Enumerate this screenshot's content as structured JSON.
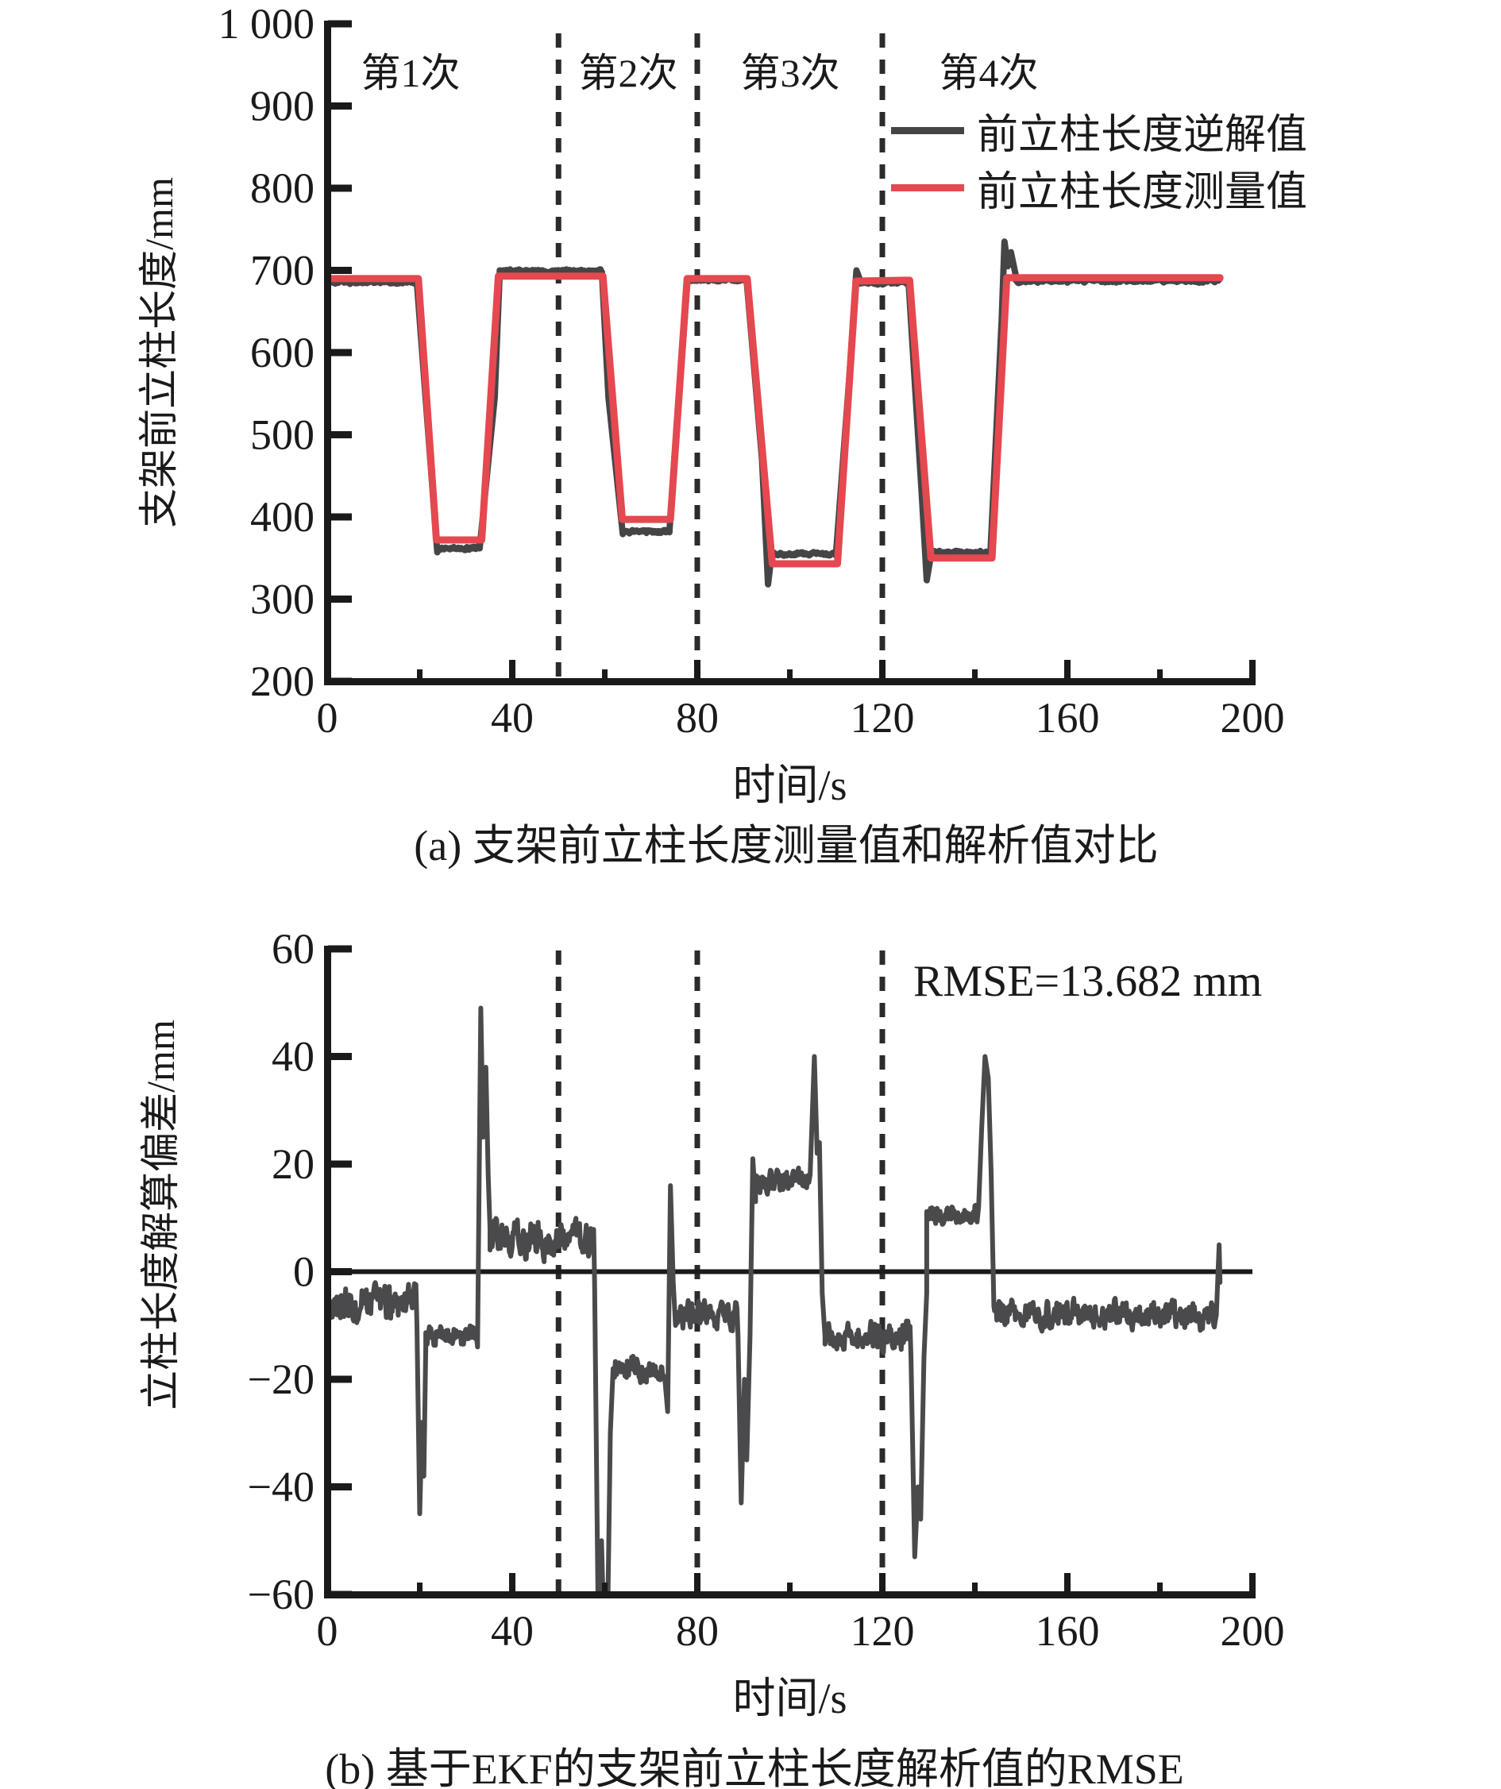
{
  "figure": {
    "background": "#ffffff",
    "text_color": "#1a1a1a",
    "axis_color": "#1a1a1a",
    "dash_color": "#2b2b2d"
  },
  "chart_data": [
    {
      "id": "a",
      "type": "line",
      "caption": "(a) 支架前立柱长度测量值和解析值对比",
      "xlabel": "时间/s",
      "ylabel": "支架前立柱长度/mm",
      "xlim": [
        0,
        200
      ],
      "ylim": [
        200,
        1000
      ],
      "xticks": [
        0,
        40,
        80,
        120,
        160,
        200
      ],
      "xtick_labels": [
        "0",
        "40",
        "80",
        "120",
        "160",
        "200"
      ],
      "x_minor_ticks": [
        20,
        60,
        100,
        140,
        180
      ],
      "yticks": [
        200,
        300,
        400,
        500,
        600,
        700,
        800,
        900,
        1000
      ],
      "ytick_labels": [
        "200",
        "300",
        "400",
        "500",
        "600",
        "700",
        "800",
        "900",
        "1 000"
      ],
      "grid": false,
      "dashed_vlines_x": [
        50,
        80,
        120
      ],
      "phase_labels": [
        {
          "text": "第1次",
          "x": 18
        },
        {
          "text": "第2次",
          "x": 65
        },
        {
          "text": "第3次",
          "x": 100
        },
        {
          "text": "第4次",
          "x": 143
        }
      ],
      "legend": {
        "position": "upper right",
        "items": [
          {
            "label": "前立柱长度逆解值",
            "color": "#454547"
          },
          {
            "label": "前立柱长度测量值",
            "color": "#e5484f"
          }
        ]
      },
      "series": [
        {
          "name": "前立柱长度逆解值",
          "color": "#454547",
          "style": "noisy",
          "segments": [
            {
              "type": "noise",
              "t0": 0.3,
              "t1": 19.4,
              "mean": 686,
              "amp": 4
            },
            {
              "type": "path",
              "pts": [
                [
                  19.4,
                  684
                ],
                [
                  23.8,
                  357
                ],
                [
                  24.3,
                  362
                ]
              ]
            },
            {
              "type": "noise",
              "t0": 24.3,
              "t1": 33.0,
              "mean": 362,
              "amp": 3
            },
            {
              "type": "path",
              "pts": [
                [
                  33.0,
                  364
                ],
                [
                  36.2,
                  545
                ],
                [
                  37.3,
                  700
                ]
              ]
            },
            {
              "type": "noise",
              "t0": 37.3,
              "t1": 59.4,
              "mean": 699,
              "amp": 3
            },
            {
              "type": "path",
              "pts": [
                [
                  59.4,
                  696
                ],
                [
                  60.8,
                  545
                ],
                [
                  63.9,
                  379
                ]
              ]
            },
            {
              "type": "noise",
              "t0": 63.9,
              "t1": 74.0,
              "mean": 382,
              "amp": 3
            },
            {
              "type": "path",
              "pts": [
                [
                  74.0,
                  384
                ],
                [
                  77.9,
                  690
                ]
              ]
            },
            {
              "type": "noise",
              "t0": 77.9,
              "t1": 90.7,
              "mean": 689,
              "amp": 3
            },
            {
              "type": "path",
              "pts": [
                [
                  90.7,
                  686
                ],
                [
                  94.0,
                  470
                ],
                [
                  95.3,
                  318
                ],
                [
                  96.0,
                  352
                ]
              ]
            },
            {
              "type": "noise",
              "t0": 96.0,
              "t1": 110.0,
              "mean": 355,
              "amp": 3
            },
            {
              "type": "path",
              "pts": [
                [
                  110.0,
                  357
                ],
                [
                  113.0,
                  580
                ],
                [
                  114.4,
                  700
                ],
                [
                  115.2,
                  688
                ]
              ]
            },
            {
              "type": "noise",
              "t0": 115.2,
              "t1": 125.7,
              "mean": 685,
              "amp": 3
            },
            {
              "type": "path",
              "pts": [
                [
                  125.7,
                  683
                ],
                [
                  128.6,
                  420
                ],
                [
                  129.6,
                  323
                ],
                [
                  130.6,
                  356
                ]
              ]
            },
            {
              "type": "noise",
              "t0": 130.6,
              "t1": 143.4,
              "mean": 357,
              "amp": 3
            },
            {
              "type": "path",
              "pts": [
                [
                  143.4,
                  360
                ],
                [
                  145.8,
                  640
                ],
                [
                  146.4,
                  735
                ],
                [
                  147.1,
                  705
                ],
                [
                  147.8,
                  722
                ],
                [
                  148.8,
                  695
                ]
              ]
            },
            {
              "type": "noise",
              "t0": 148.8,
              "t1": 193.0,
              "mean": 688,
              "amp": 4
            }
          ]
        },
        {
          "name": "前立柱长度测量值",
          "color": "#e5484f",
          "style": "steps",
          "points": [
            [
              0.3,
              690
            ],
            [
              19.7,
              690
            ],
            [
              23.6,
              372
            ],
            [
              33.4,
              372
            ],
            [
              37.0,
              693
            ],
            [
              59.6,
              693
            ],
            [
              63.8,
              397
            ],
            [
              74.2,
              397
            ],
            [
              77.8,
              690
            ],
            [
              90.8,
              690
            ],
            [
              96.2,
              343
            ],
            [
              110.3,
              343
            ],
            [
              114.3,
              687
            ],
            [
              125.9,
              688
            ],
            [
              130.5,
              350
            ],
            [
              143.7,
              350
            ],
            [
              146.9,
              691
            ],
            [
              193.0,
              691
            ]
          ]
        }
      ]
    },
    {
      "id": "b",
      "type": "line",
      "caption": "(b) 基于EKF的支架前立柱长度解析值的RMSE",
      "xlabel": "时间/s",
      "ylabel": "立柱长度解算偏差/mm",
      "annotation": "RMSE=13.682 mm",
      "xlim": [
        0,
        200
      ],
      "ylim": [
        -60,
        60
      ],
      "xticks": [
        0,
        40,
        80,
        120,
        160,
        200
      ],
      "xtick_labels": [
        "0",
        "40",
        "80",
        "120",
        "160",
        "200"
      ],
      "x_minor_ticks": [
        20,
        60,
        100,
        140,
        180
      ],
      "yticks": [
        -60,
        -40,
        -20,
        0,
        20,
        40,
        60
      ],
      "ytick_labels": [
        "−60",
        "−40",
        "−20",
        "0",
        "20",
        "40",
        "60"
      ],
      "grid": false,
      "zero_line": true,
      "dashed_vlines_x": [
        50,
        80,
        120
      ],
      "series": [
        {
          "name": "立柱长度解算偏差",
          "color": "#4a4a4c",
          "style": "noisy",
          "segments": [
            {
              "type": "noise",
              "t0": 0.3,
              "t1": 19.3,
              "mean": -6,
              "amp": 5
            },
            {
              "type": "path",
              "pts": [
                [
                  19.4,
                  -10
                ],
                [
                  20.0,
                  -45
                ],
                [
                  20.5,
                  -28
                ],
                [
                  20.9,
                  -38
                ],
                [
                  21.3,
                  -14
                ]
              ]
            },
            {
              "type": "noise",
              "t0": 21.3,
              "t1": 32.3,
              "mean": -12,
              "amp": 3
            },
            {
              "type": "path",
              "pts": [
                [
                  32.5,
                  -14
                ],
                [
                  33.2,
                  49
                ],
                [
                  33.7,
                  25
                ],
                [
                  34.3,
                  38
                ],
                [
                  34.8,
                  18
                ],
                [
                  35.2,
                  8
                ]
              ]
            },
            {
              "type": "noise",
              "t0": 35.2,
              "t1": 57.6,
              "mean": 6,
              "amp": 5
            },
            {
              "type": "path",
              "pts": [
                [
                  57.8,
                  -2
                ],
                [
                  58.6,
                  -66
                ],
                [
                  59.3,
                  -50
                ],
                [
                  59.8,
                  -66
                ],
                [
                  60.6,
                  -66
                ],
                [
                  61.2,
                  -30
                ],
                [
                  61.8,
                  -18
                ]
              ]
            },
            {
              "type": "noise",
              "t0": 61.8,
              "t1": 72.8,
              "mean": -18,
              "amp": 4
            },
            {
              "type": "path",
              "pts": [
                [
                  73.0,
                  -20
                ],
                [
                  73.6,
                  -26
                ],
                [
                  74.2,
                  16
                ],
                [
                  74.8,
                  -2
                ],
                [
                  75.3,
                  -10
                ]
              ]
            },
            {
              "type": "noise",
              "t0": 75.3,
              "t1": 88.6,
              "mean": -8,
              "amp": 4
            },
            {
              "type": "path",
              "pts": [
                [
                  88.8,
                  -12
                ],
                [
                  89.5,
                  -43
                ],
                [
                  90.2,
                  -20
                ],
                [
                  90.7,
                  -35
                ],
                [
                  91.4,
                  -12
                ]
              ]
            },
            {
              "type": "path",
              "pts": [
                [
                  92.0,
                  21
                ],
                [
                  92.6,
                  13
                ]
              ]
            },
            {
              "type": "noise",
              "t0": 92.6,
              "t1": 104.2,
              "mean": 17,
              "amp": 3
            },
            {
              "type": "path",
              "pts": [
                [
                  104.4,
                  18
                ],
                [
                  105.3,
                  40
                ],
                [
                  105.9,
                  22
                ],
                [
                  106.4,
                  24
                ],
                [
                  107.0,
                  -4
                ],
                [
                  107.6,
                  -12
                ]
              ]
            },
            {
              "type": "noise",
              "t0": 107.6,
              "t1": 126.0,
              "mean": -12,
              "amp": 4
            },
            {
              "type": "path",
              "pts": [
                [
                  126.2,
                  -16
                ],
                [
                  127.0,
                  -53
                ],
                [
                  127.7,
                  -40
                ],
                [
                  128.3,
                  -46
                ],
                [
                  129.0,
                  -16
                ],
                [
                  129.6,
                  -4
                ]
              ]
            },
            {
              "type": "noise",
              "t0": 129.6,
              "t1": 140.6,
              "mean": 11,
              "amp": 3
            },
            {
              "type": "path",
              "pts": [
                [
                  140.8,
                  12
                ],
                [
                  141.5,
                  27
                ],
                [
                  142.2,
                  40
                ],
                [
                  142.9,
                  36
                ],
                [
                  143.5,
                  19
                ],
                [
                  144.1,
                  -6
                ]
              ]
            },
            {
              "type": "noise",
              "t0": 144.1,
              "t1": 192.0,
              "mean": -8,
              "amp": 4
            },
            {
              "type": "path",
              "pts": [
                [
                  192.2,
                  -8
                ],
                [
                  192.8,
                  5
                ],
                [
                  193.0,
                  -2
                ]
              ]
            }
          ]
        }
      ]
    }
  ]
}
